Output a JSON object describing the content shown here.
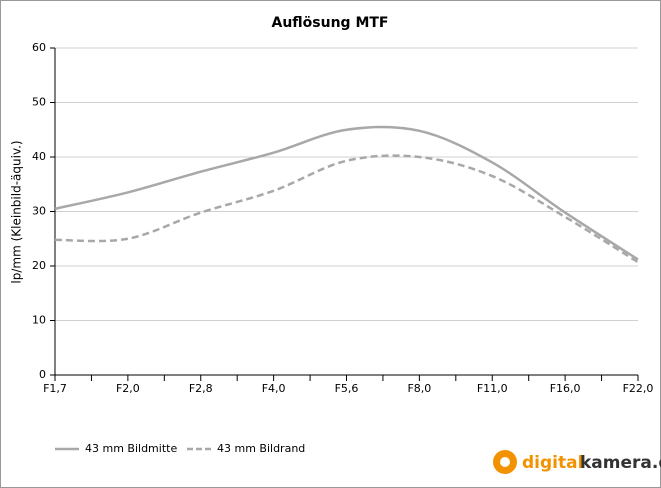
{
  "chart_data": {
    "type": "line",
    "title": "Auflösung MTF",
    "y_label": "lp/mm  (Kleinbild-äquiv.)",
    "categories": [
      "F1,7",
      "F2,0",
      "F2,8",
      "F4,0",
      "F5,6",
      "F8,0",
      "F11,0",
      "F16,0",
      "F22,0"
    ],
    "series": [
      {
        "name": "43 mm Bildmitte",
        "color": "#a8a8a8",
        "dash": false,
        "values": [
          30.5,
          33.5,
          37.3,
          40.8,
          45.0,
          44.8,
          39.0,
          29.8,
          21.2
        ]
      },
      {
        "name": "43 mm Bildrand",
        "color": "#a8a8a8",
        "dash": true,
        "values": [
          24.8,
          25.0,
          29.8,
          33.8,
          39.3,
          40.0,
          36.5,
          29.0,
          20.7
        ]
      }
    ],
    "ylim": [
      0,
      60
    ],
    "yticks": [
      0,
      10,
      20,
      30,
      40,
      50,
      60
    ],
    "grid": true
  },
  "logo": {
    "part1": "digital",
    "part2": "kamera.de"
  }
}
